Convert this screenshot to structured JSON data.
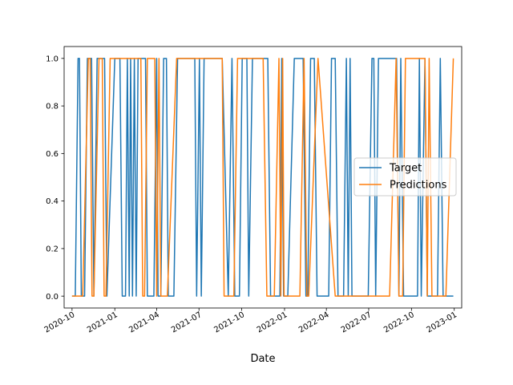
{
  "chart_data": {
    "type": "line",
    "title": "",
    "xlabel": "Date",
    "ylabel": "",
    "xlim": [
      "2020-09-14",
      "2023-01-17"
    ],
    "ylim": [
      -0.05,
      1.05
    ],
    "x_ticks": [
      {
        "date": "2020-10-01",
        "label": "2020-10"
      },
      {
        "date": "2021-01-01",
        "label": "2021-01"
      },
      {
        "date": "2021-04-01",
        "label": "2021-04"
      },
      {
        "date": "2021-07-01",
        "label": "2021-07"
      },
      {
        "date": "2021-10-01",
        "label": "2021-10"
      },
      {
        "date": "2022-01-01",
        "label": "2022-01"
      },
      {
        "date": "2022-04-01",
        "label": "2022-04"
      },
      {
        "date": "2022-07-01",
        "label": "2022-07"
      },
      {
        "date": "2022-10-01",
        "label": "2022-10"
      },
      {
        "date": "2023-01-01",
        "label": "2023-01"
      }
    ],
    "y_ticks": [
      {
        "value": 0.0,
        "label": "0.0"
      },
      {
        "value": 0.2,
        "label": "0.2"
      },
      {
        "value": 0.4,
        "label": "0.4"
      },
      {
        "value": 0.6,
        "label": "0.6"
      },
      {
        "value": 0.8,
        "label": "0.8"
      },
      {
        "value": 1.0,
        "label": "1.0"
      }
    ],
    "legend_position": "center-right",
    "series": [
      {
        "name": "Target",
        "color": "#1f77b4",
        "points": [
          [
            "2020-10-01",
            0
          ],
          [
            "2020-10-08",
            0
          ],
          [
            "2020-10-14",
            1
          ],
          [
            "2020-10-17",
            1
          ],
          [
            "2020-10-21",
            0
          ],
          [
            "2020-10-28",
            0
          ],
          [
            "2020-11-03",
            1
          ],
          [
            "2020-11-12",
            1
          ],
          [
            "2020-11-17",
            0
          ],
          [
            "2020-11-24",
            1
          ],
          [
            "2020-12-10",
            1
          ],
          [
            "2020-12-15",
            0
          ],
          [
            "2021-01-01",
            1
          ],
          [
            "2021-01-12",
            1
          ],
          [
            "2021-01-17",
            0
          ],
          [
            "2021-01-24",
            0
          ],
          [
            "2021-01-28",
            1
          ],
          [
            "2021-02-01",
            0
          ],
          [
            "2021-02-04",
            1
          ],
          [
            "2021-02-08",
            0
          ],
          [
            "2021-02-12",
            1
          ],
          [
            "2021-02-16",
            0
          ],
          [
            "2021-02-20",
            1
          ],
          [
            "2021-03-08",
            1
          ],
          [
            "2021-03-12",
            0
          ],
          [
            "2021-03-26",
            0
          ],
          [
            "2021-04-01",
            1
          ],
          [
            "2021-04-04",
            0
          ],
          [
            "2021-04-10",
            0
          ],
          [
            "2021-04-16",
            1
          ],
          [
            "2021-04-22",
            1
          ],
          [
            "2021-04-26",
            0
          ],
          [
            "2021-05-08",
            0
          ],
          [
            "2021-05-16",
            1
          ],
          [
            "2021-06-22",
            1
          ],
          [
            "2021-06-26",
            0
          ],
          [
            "2021-07-02",
            1
          ],
          [
            "2021-07-06",
            0
          ],
          [
            "2021-07-12",
            1
          ],
          [
            "2021-08-20",
            1
          ],
          [
            "2021-09-02",
            0
          ],
          [
            "2021-09-10",
            1
          ],
          [
            "2021-09-16",
            0
          ],
          [
            "2021-09-26",
            0
          ],
          [
            "2021-10-02",
            1
          ],
          [
            "2021-10-12",
            1
          ],
          [
            "2021-10-16",
            0
          ],
          [
            "2021-10-24",
            1
          ],
          [
            "2021-11-26",
            1
          ],
          [
            "2021-12-02",
            0
          ],
          [
            "2021-12-22",
            0
          ],
          [
            "2021-12-26",
            1
          ],
          [
            "2021-12-30",
            0
          ],
          [
            "2022-01-08",
            0
          ],
          [
            "2022-01-22",
            1
          ],
          [
            "2022-02-10",
            1
          ],
          [
            "2022-02-16",
            0
          ],
          [
            "2022-02-20",
            0
          ],
          [
            "2022-02-26",
            1
          ],
          [
            "2022-03-06",
            1
          ],
          [
            "2022-03-12",
            0
          ],
          [
            "2022-04-06",
            0
          ],
          [
            "2022-04-12",
            1
          ],
          [
            "2022-04-20",
            1
          ],
          [
            "2022-04-26",
            0
          ],
          [
            "2022-05-08",
            0
          ],
          [
            "2022-05-14",
            1
          ],
          [
            "2022-05-18",
            0
          ],
          [
            "2022-05-22",
            1
          ],
          [
            "2022-05-26",
            0
          ],
          [
            "2022-06-30",
            0
          ],
          [
            "2022-07-08",
            1
          ],
          [
            "2022-07-12",
            1
          ],
          [
            "2022-07-16",
            0
          ],
          [
            "2022-07-22",
            1
          ],
          [
            "2022-08-30",
            1
          ],
          [
            "2022-09-04",
            0
          ],
          [
            "2022-09-08",
            1
          ],
          [
            "2022-09-14",
            0
          ],
          [
            "2022-10-14",
            0
          ],
          [
            "2022-10-18",
            1
          ],
          [
            "2022-10-22",
            0
          ],
          [
            "2022-10-30",
            1
          ],
          [
            "2022-11-04",
            0
          ],
          [
            "2022-11-26",
            0
          ],
          [
            "2022-12-02",
            1
          ],
          [
            "2022-12-08",
            0
          ],
          [
            "2022-12-30",
            0
          ]
        ]
      },
      {
        "name": "Predictions",
        "color": "#ff7f0e",
        "points": [
          [
            "2020-10-01",
            0
          ],
          [
            "2020-10-24",
            0
          ],
          [
            "2020-11-05",
            1
          ],
          [
            "2020-11-09",
            1
          ],
          [
            "2020-11-13",
            0
          ],
          [
            "2020-11-17",
            0
          ],
          [
            "2020-11-28",
            1
          ],
          [
            "2020-12-05",
            1
          ],
          [
            "2020-12-09",
            0
          ],
          [
            "2020-12-13",
            0
          ],
          [
            "2020-12-22",
            1
          ],
          [
            "2021-02-26",
            1
          ],
          [
            "2021-03-02",
            0
          ],
          [
            "2021-03-06",
            0
          ],
          [
            "2021-03-12",
            1
          ],
          [
            "2021-03-28",
            1
          ],
          [
            "2021-04-01",
            0
          ],
          [
            "2021-04-06",
            1
          ],
          [
            "2021-04-10",
            0
          ],
          [
            "2021-04-14",
            0
          ],
          [
            "2021-04-24",
            0
          ],
          [
            "2021-05-14",
            1
          ],
          [
            "2021-08-20",
            1
          ],
          [
            "2021-08-24",
            0
          ],
          [
            "2021-09-14",
            0
          ],
          [
            "2021-09-22",
            1
          ],
          [
            "2021-11-16",
            1
          ],
          [
            "2021-11-24",
            0
          ],
          [
            "2021-12-10",
            0
          ],
          [
            "2021-12-20",
            1
          ],
          [
            "2021-12-24",
            0
          ],
          [
            "2021-12-28",
            1
          ],
          [
            "2021-12-31",
            0
          ],
          [
            "2022-02-03",
            0
          ],
          [
            "2022-02-12",
            1
          ],
          [
            "2022-02-18",
            0
          ],
          [
            "2022-02-22",
            0
          ],
          [
            "2022-03-14",
            1
          ],
          [
            "2022-04-20",
            0
          ],
          [
            "2022-08-15",
            0
          ],
          [
            "2022-08-29",
            1
          ],
          [
            "2022-09-04",
            0
          ],
          [
            "2022-09-12",
            0
          ],
          [
            "2022-09-18",
            1
          ],
          [
            "2022-10-30",
            1
          ],
          [
            "2022-11-04",
            0
          ],
          [
            "2022-11-08",
            1
          ],
          [
            "2022-11-14",
            0
          ],
          [
            "2022-12-14",
            0
          ],
          [
            "2022-12-30",
            1
          ]
        ]
      }
    ]
  }
}
